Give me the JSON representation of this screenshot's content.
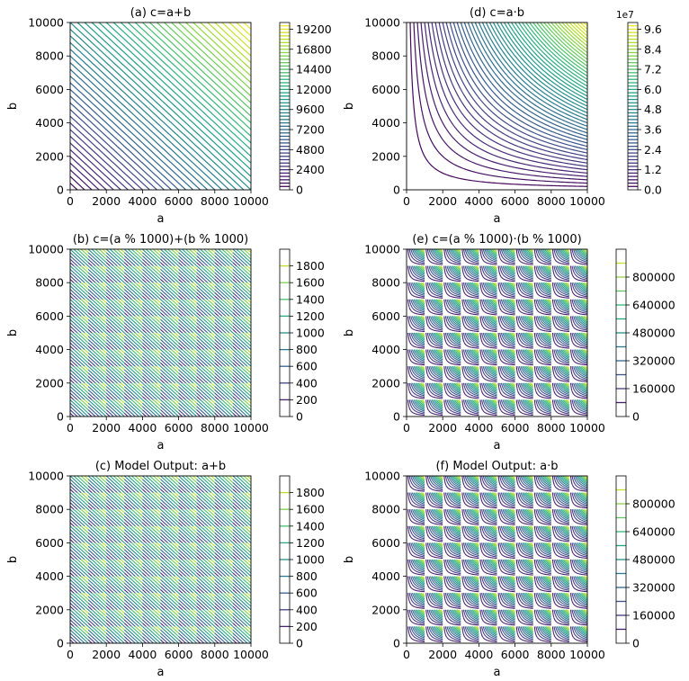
{
  "chart_data": [
    {
      "panel": "a",
      "type": "contour",
      "title": "(a) c=a+b",
      "xlabel": "a",
      "ylabel": "b",
      "xlim": [
        0,
        10000
      ],
      "ylim": [
        0,
        10000
      ],
      "x_ticks": [
        "0",
        "2000",
        "4000",
        "6000",
        "8000",
        "10000"
      ],
      "y_ticks": [
        "0",
        "2000",
        "4000",
        "6000",
        "8000",
        "10000"
      ],
      "function": "a+b",
      "colorbar": {
        "range": [
          0,
          20000
        ],
        "levels": 50,
        "offset_label": "",
        "tick_values": [
          0,
          2400,
          4800,
          7200,
          9600,
          12000,
          14400,
          16800,
          19200
        ],
        "tick_labels": [
          "0",
          "2400",
          "4800",
          "7200",
          "9600",
          "12000",
          "14400",
          "16800",
          "19200"
        ]
      }
    },
    {
      "panel": "d",
      "type": "contour",
      "title": "(d) c=a·b",
      "xlabel": "a",
      "ylabel": "b",
      "xlim": [
        0,
        10000
      ],
      "ylim": [
        0,
        10000
      ],
      "x_ticks": [
        "0",
        "2000",
        "4000",
        "6000",
        "8000",
        "10000"
      ],
      "y_ticks": [
        "0",
        "2000",
        "4000",
        "6000",
        "8000",
        "10000"
      ],
      "function": "a*b",
      "colorbar": {
        "range": [
          0,
          100000000
        ],
        "levels": 50,
        "offset_label": "1e7",
        "tick_values": [
          0,
          12000000,
          24000000,
          36000000,
          48000000,
          60000000,
          72000000,
          84000000,
          96000000
        ],
        "tick_labels": [
          "0.0",
          "1.2",
          "2.4",
          "3.6",
          "4.8",
          "6.0",
          "7.2",
          "8.4",
          "9.6"
        ]
      }
    },
    {
      "panel": "b",
      "type": "contour",
      "title": "(b) c=(a % 1000)+(b % 1000)",
      "xlabel": "a",
      "ylabel": "b",
      "xlim": [
        0,
        10000
      ],
      "ylim": [
        0,
        10000
      ],
      "x_ticks": [
        "0",
        "2000",
        "4000",
        "6000",
        "8000",
        "10000"
      ],
      "y_ticks": [
        "0",
        "2000",
        "4000",
        "6000",
        "8000",
        "10000"
      ],
      "function": "(a%1000)+(b%1000)",
      "period": 1000,
      "colorbar": {
        "range": [
          0,
          2000
        ],
        "levels": 10,
        "offset_label": "",
        "tick_values": [
          0,
          200,
          400,
          600,
          800,
          1000,
          1200,
          1400,
          1600,
          1800
        ],
        "tick_labels": [
          "0",
          "200",
          "400",
          "600",
          "800",
          "1000",
          "1200",
          "1400",
          "1600",
          "1800"
        ]
      }
    },
    {
      "panel": "e",
      "type": "contour",
      "title": "(e) c=(a % 1000)·(b % 1000)",
      "xlabel": "a",
      "ylabel": "b",
      "xlim": [
        0,
        10000
      ],
      "ylim": [
        0,
        10000
      ],
      "x_ticks": [
        "0",
        "2000",
        "4000",
        "6000",
        "8000",
        "10000"
      ],
      "y_ticks": [
        "0",
        "2000",
        "4000",
        "6000",
        "8000",
        "10000"
      ],
      "function": "(a%1000)*(b%1000)",
      "period": 1000,
      "colorbar": {
        "range": [
          0,
          960000
        ],
        "levels": 12,
        "offset_label": "",
        "tick_values": [
          0,
          160000,
          320000,
          480000,
          640000,
          800000
        ],
        "tick_labels": [
          "0",
          "160000",
          "320000",
          "480000",
          "640000",
          "800000"
        ]
      }
    },
    {
      "panel": "c",
      "type": "contour",
      "title": "(c) Model Output: a+b",
      "xlabel": "a",
      "ylabel": "b",
      "xlim": [
        0,
        10000
      ],
      "ylim": [
        0,
        10000
      ],
      "x_ticks": [
        "0",
        "2000",
        "4000",
        "6000",
        "8000",
        "10000"
      ],
      "y_ticks": [
        "0",
        "2000",
        "4000",
        "6000",
        "8000",
        "10000"
      ],
      "function": "(a%1000)+(b%1000)",
      "period": 1000,
      "colorbar": {
        "range": [
          0,
          2000
        ],
        "levels": 10,
        "offset_label": "",
        "tick_values": [
          0,
          200,
          400,
          600,
          800,
          1000,
          1200,
          1400,
          1600,
          1800
        ],
        "tick_labels": [
          "0",
          "200",
          "400",
          "600",
          "800",
          "1000",
          "1200",
          "1400",
          "1600",
          "1800"
        ]
      }
    },
    {
      "panel": "f",
      "type": "contour",
      "title": "(f) Model Output: a·b",
      "xlabel": "a",
      "ylabel": "b",
      "xlim": [
        0,
        10000
      ],
      "ylim": [
        0,
        10000
      ],
      "x_ticks": [
        "0",
        "2000",
        "4000",
        "6000",
        "8000",
        "10000"
      ],
      "y_ticks": [
        "0",
        "2000",
        "4000",
        "6000",
        "8000",
        "10000"
      ],
      "function": "(a%1000)*(b%1000)",
      "period": 1000,
      "colorbar": {
        "range": [
          0,
          960000
        ],
        "levels": 12,
        "offset_label": "",
        "tick_values": [
          0,
          160000,
          320000,
          480000,
          640000,
          800000
        ],
        "tick_labels": [
          "0",
          "160000",
          "320000",
          "480000",
          "640000",
          "800000"
        ]
      }
    }
  ]
}
